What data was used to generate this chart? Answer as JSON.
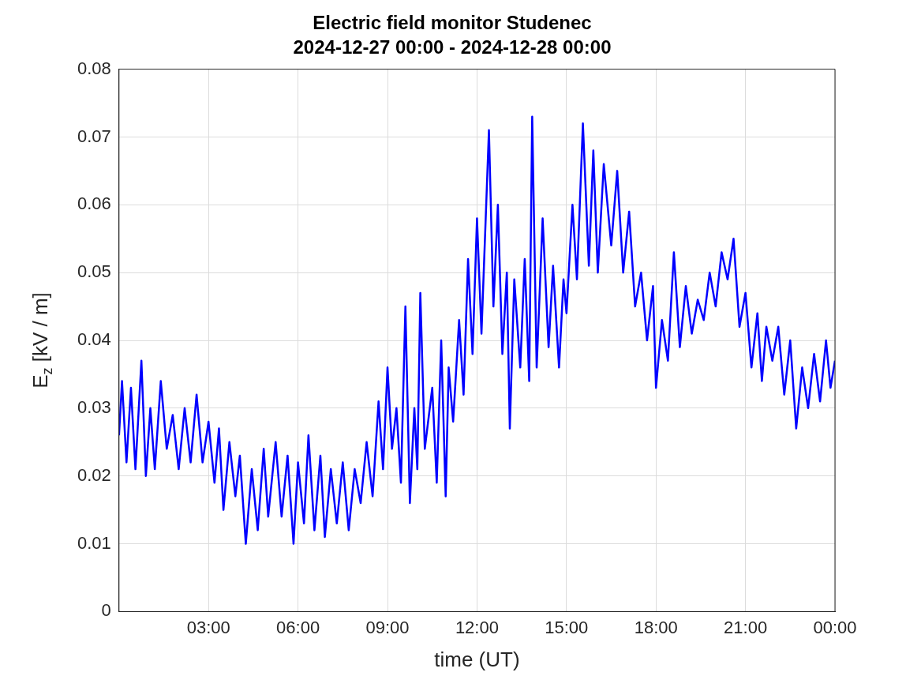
{
  "chart_data": {
    "type": "line",
    "title": "Electric field monitor Studenec",
    "subtitle": "2024-12-27 00:00 - 2024-12-28 00:00",
    "xlabel": "time (UT)",
    "ylabel": "E$_{z}$ [kV / m]",
    "xlim": [
      0,
      24
    ],
    "xticks": [
      {
        "value": 3,
        "label": "03:00"
      },
      {
        "value": 6,
        "label": "06:00"
      },
      {
        "value": 9,
        "label": "09:00"
      },
      {
        "value": 12,
        "label": "12:00"
      },
      {
        "value": 15,
        "label": "15:00"
      },
      {
        "value": 18,
        "label": "18:00"
      },
      {
        "value": 21,
        "label": "21:00"
      },
      {
        "value": 24,
        "label": "00:00"
      }
    ],
    "ylim": [
      0,
      0.08
    ],
    "yticks": [
      0,
      0.01,
      0.02,
      0.03,
      0.04,
      0.05,
      0.06,
      0.07,
      0.08
    ],
    "grid": true,
    "legend": false,
    "marker": "none",
    "line_style": "solid",
    "series": [
      {
        "color": "#0000ff",
        "x": [
          0,
          0.1,
          0.25,
          0.4,
          0.55,
          0.75,
          0.9,
          1.05,
          1.2,
          1.4,
          1.6,
          1.8,
          2,
          2.2,
          2.4,
          2.6,
          2.8,
          3,
          3.2,
          3.35,
          3.5,
          3.7,
          3.9,
          4.05,
          4.25,
          4.45,
          4.65,
          4.85,
          5,
          5.25,
          5.45,
          5.65,
          5.85,
          6,
          6.2,
          6.35,
          6.55,
          6.75,
          6.9,
          7.1,
          7.3,
          7.5,
          7.7,
          7.9,
          8.1,
          8.3,
          8.5,
          8.7,
          8.85,
          9,
          9.15,
          9.3,
          9.45,
          9.6,
          9.75,
          9.9,
          10,
          10.1,
          10.25,
          10.5,
          10.65,
          10.8,
          10.95,
          11.05,
          11.2,
          11.4,
          11.55,
          11.7,
          11.85,
          12,
          12.15,
          12.4,
          12.55,
          12.7,
          12.85,
          13,
          13.1,
          13.25,
          13.45,
          13.6,
          13.75,
          13.85,
          14,
          14.2,
          14.4,
          14.55,
          14.75,
          14.9,
          15,
          15.2,
          15.35,
          15.55,
          15.75,
          15.9,
          16.05,
          16.25,
          16.5,
          16.7,
          16.9,
          17.1,
          17.3,
          17.5,
          17.7,
          17.9,
          18,
          18.2,
          18.4,
          18.6,
          18.8,
          19,
          19.2,
          19.4,
          19.6,
          19.8,
          20,
          20.2,
          20.4,
          20.6,
          20.8,
          21,
          21.2,
          21.4,
          21.55,
          21.7,
          21.9,
          22.1,
          22.3,
          22.5,
          22.7,
          22.9,
          23.1,
          23.3,
          23.5,
          23.7,
          23.85,
          24
        ],
        "values": [
          0.026,
          0.034,
          0.022,
          0.033,
          0.021,
          0.037,
          0.02,
          0.03,
          0.021,
          0.034,
          0.024,
          0.029,
          0.021,
          0.03,
          0.022,
          0.032,
          0.022,
          0.028,
          0.019,
          0.027,
          0.015,
          0.025,
          0.017,
          0.023,
          0.01,
          0.021,
          0.012,
          0.024,
          0.014,
          0.025,
          0.014,
          0.023,
          0.01,
          0.022,
          0.013,
          0.026,
          0.012,
          0.023,
          0.011,
          0.021,
          0.013,
          0.022,
          0.012,
          0.021,
          0.016,
          0.025,
          0.017,
          0.031,
          0.021,
          0.036,
          0.024,
          0.03,
          0.019,
          0.045,
          0.016,
          0.03,
          0.021,
          0.047,
          0.024,
          0.033,
          0.019,
          0.04,
          0.017,
          0.036,
          0.028,
          0.043,
          0.032,
          0.052,
          0.038,
          0.058,
          0.041,
          0.071,
          0.045,
          0.06,
          0.038,
          0.05,
          0.027,
          0.049,
          0.036,
          0.052,
          0.034,
          0.073,
          0.036,
          0.058,
          0.039,
          0.051,
          0.036,
          0.049,
          0.044,
          0.06,
          0.049,
          0.072,
          0.051,
          0.068,
          0.05,
          0.066,
          0.054,
          0.065,
          0.05,
          0.059,
          0.045,
          0.05,
          0.04,
          0.048,
          0.033,
          0.043,
          0.037,
          0.053,
          0.039,
          0.048,
          0.041,
          0.046,
          0.043,
          0.05,
          0.045,
          0.053,
          0.049,
          0.055,
          0.042,
          0.047,
          0.036,
          0.044,
          0.034,
          0.042,
          0.037,
          0.042,
          0.032,
          0.04,
          0.027,
          0.036,
          0.03,
          0.038,
          0.031,
          0.04,
          0.033,
          0.037
        ]
      }
    ]
  }
}
